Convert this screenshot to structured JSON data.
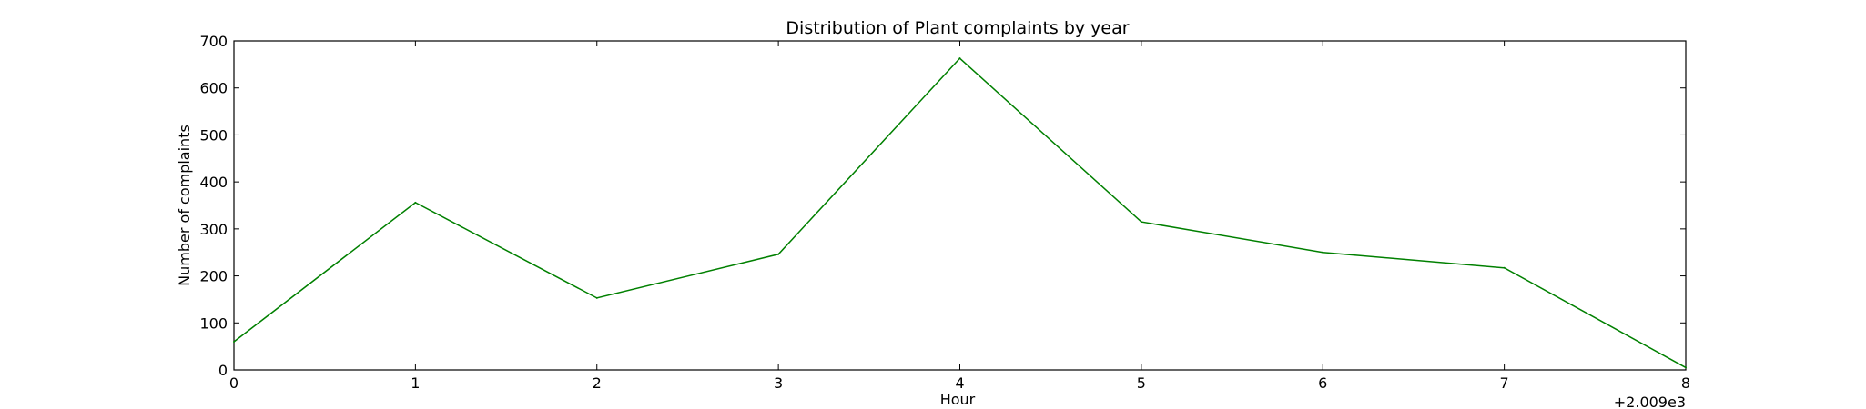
{
  "chart_data": {
    "type": "line",
    "title": "Distribution of  Plant complaints by year",
    "xlabel": "Hour",
    "ylabel": "Number of complaints",
    "x_offset_label": "+2.009e3",
    "xlim": [
      0,
      8
    ],
    "ylim": [
      0,
      700
    ],
    "x_ticks": [
      "0",
      "1",
      "2",
      "3",
      "4",
      "5",
      "6",
      "7",
      "8"
    ],
    "y_ticks": [
      "0",
      "100",
      "200",
      "300",
      "400",
      "500",
      "600",
      "700"
    ],
    "grid": false,
    "line_color": "#008000",
    "series": [
      {
        "x": [
          0,
          1,
          2,
          3,
          4,
          5,
          6,
          7,
          8
        ],
        "values": [
          60,
          356,
          153,
          246,
          663,
          315,
          250,
          217,
          5
        ]
      }
    ]
  }
}
